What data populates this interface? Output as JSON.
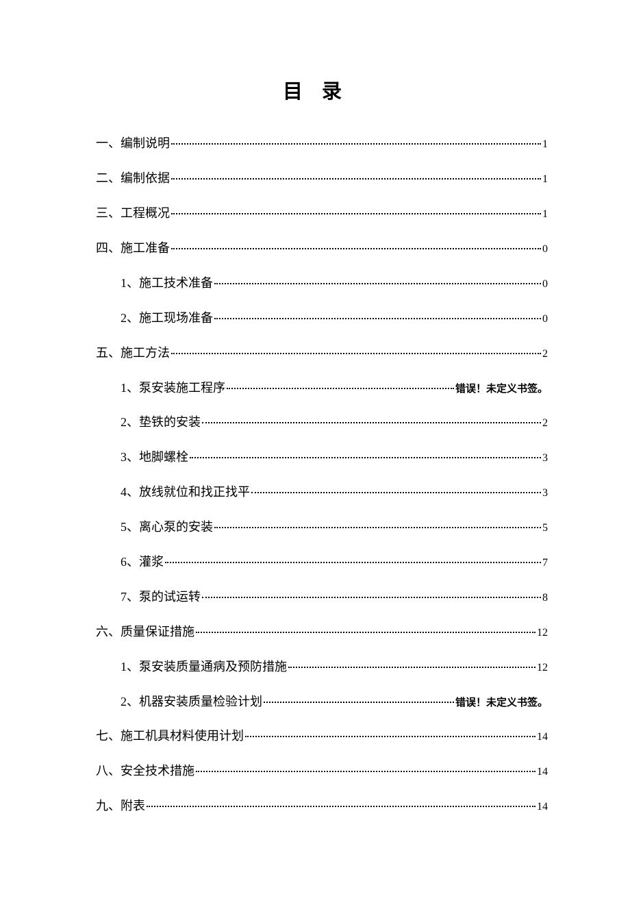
{
  "title": "目录",
  "entries": [
    {
      "level": 1,
      "label": "一、编制说明",
      "page": "1",
      "error": false
    },
    {
      "level": 1,
      "label": "二、编制依据",
      "page": "1",
      "error": false
    },
    {
      "level": 1,
      "label": "三、工程概况",
      "page": "1",
      "error": false
    },
    {
      "level": 1,
      "label": "四、施工准备",
      "page": "0",
      "error": false
    },
    {
      "level": 2,
      "label": "1、施工技术准备",
      "page": "0",
      "error": false
    },
    {
      "level": 2,
      "label": "2、施工现场准备",
      "page": "0",
      "error": false
    },
    {
      "level": 1,
      "label": "五、施工方法",
      "page": "2",
      "error": false
    },
    {
      "level": 2,
      "label": "1、泵安装施工程序",
      "page": "错误！未定义书签。",
      "error": true
    },
    {
      "level": 2,
      "label": "2、垫铁的安装",
      "page": "2",
      "error": false
    },
    {
      "level": 2,
      "label": "3、地脚螺栓",
      "page": "3",
      "error": false
    },
    {
      "level": 2,
      "label": "4、放线就位和找正找平",
      "page": "3",
      "error": false
    },
    {
      "level": 2,
      "label": "5、离心泵的安装",
      "page": "5",
      "error": false
    },
    {
      "level": 2,
      "label": "6、灌浆",
      "page": "7",
      "error": false
    },
    {
      "level": 2,
      "label": "7、泵的试运转",
      "page": "8",
      "error": false
    },
    {
      "level": 1,
      "label": "六、质量保证措施",
      "page": "12",
      "error": false
    },
    {
      "level": 2,
      "label": "1、泵安装质量通病及预防措施",
      "page": "12",
      "error": false
    },
    {
      "level": 2,
      "label": "2、机器安装质量检验计划",
      "page": "错误！未定义书签。",
      "error": true
    },
    {
      "level": 1,
      "label": "七、施工机具材料使用计划",
      "page": "14",
      "error": false
    },
    {
      "level": 1,
      "label": "八、安全技术措施",
      "page": "14",
      "error": false
    },
    {
      "level": 1,
      "label": "九、附表",
      "page": "14",
      "error": false
    }
  ]
}
